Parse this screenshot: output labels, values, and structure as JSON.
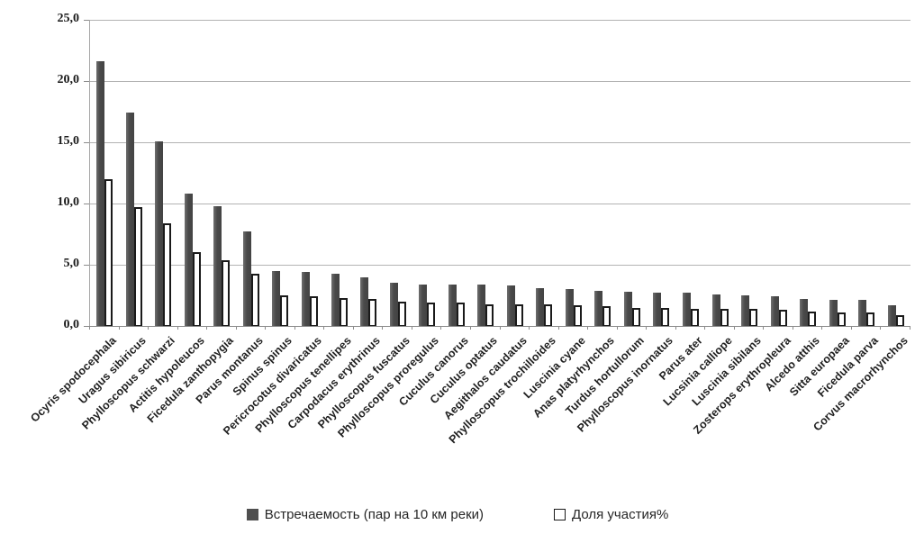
{
  "chart_data": {
    "type": "bar",
    "title": "",
    "xlabel": "",
    "ylabel": "",
    "ylim": [
      0,
      25
    ],
    "ytick_labels": [
      "0,0",
      "5,0",
      "10,0",
      "15,0",
      "20,0",
      "25,0"
    ],
    "grid": true,
    "legend_position": "bottom",
    "categories": [
      "Ocyris spodocephala",
      "Uragus sibiricus",
      "Phylloscopus schwarzi",
      "Actitis hypoleucos",
      "Ficedula zanthopygia",
      "Parus montanus",
      "Spinus spinus",
      "Pericrocotus divaricatus",
      "Phylloscopus tenellipes",
      "Carpodacus erythrinus",
      "Phylloscopus fuscatus",
      "Phylloscopus proregulus",
      "Cuculus canorus",
      "Cuculus optatus",
      "Aegithalos caudatus",
      "Phylloscopus trochilloides",
      "Luscinia cyane",
      "Anas platyrhynchos",
      "Turdus hortullorum",
      "Phylloscopus inornatus",
      "Parus ater",
      "Lucsinia calliope",
      "Luscinia sibilans",
      "Zosterops erythropleura",
      "Alcedo atthis",
      "Sitta europaea",
      "Ficedula parva",
      "Corvus macrorhynchos"
    ],
    "series": [
      {
        "name": "Встречаемость (пар на 10 км реки)",
        "values": [
          21.6,
          17.4,
          15.1,
          10.8,
          9.8,
          7.7,
          4.5,
          4.4,
          4.3,
          4.0,
          3.5,
          3.4,
          3.4,
          3.4,
          3.3,
          3.1,
          3.0,
          2.9,
          2.8,
          2.7,
          2.7,
          2.6,
          2.5,
          2.4,
          2.2,
          2.1,
          2.1,
          1.7
        ]
      },
      {
        "name": "Доля участия%",
        "values": [
          12.0,
          9.7,
          8.4,
          6.0,
          5.4,
          4.3,
          2.5,
          2.4,
          2.3,
          2.2,
          2.0,
          1.9,
          1.9,
          1.8,
          1.8,
          1.8,
          1.7,
          1.6,
          1.5,
          1.5,
          1.4,
          1.4,
          1.4,
          1.3,
          1.2,
          1.1,
          1.1,
          0.9
        ]
      }
    ],
    "colors": {
      "series1_fill": "#4d4d4d",
      "series2_fill": "#ffffff",
      "series2_border": "#1a1a1a",
      "gridline": "#b3b3b3",
      "axis": "#8c8c8c",
      "text": "#1f1f1f",
      "background": "#ffffff"
    }
  }
}
